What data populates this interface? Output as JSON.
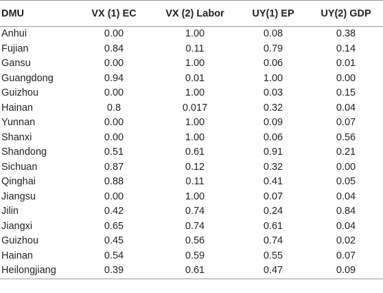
{
  "table": {
    "headers": [
      "DMU",
      "VX (1) EC",
      "VX (2) Labor",
      "UY(1) EP",
      "UY(2) GDP"
    ],
    "rows": [
      [
        "Anhui",
        "0.00",
        "1.00",
        "0.08",
        "0.38"
      ],
      [
        "Fujian",
        "0.84",
        "0.11",
        "0.79",
        "0.14"
      ],
      [
        "Gansu",
        "0.00",
        "1.00",
        "0.06",
        "0.01"
      ],
      [
        "Guangdong",
        "0.94",
        "0.01",
        "1.00",
        "0.00"
      ],
      [
        "Guizhou",
        "0.00",
        "1.00",
        "0.03",
        "0.15"
      ],
      [
        "Hainan",
        "0.8",
        "0.017",
        "0.32",
        "0.04"
      ],
      [
        "Yunnan",
        "0.00",
        "1.00",
        "0.09",
        "0.07"
      ],
      [
        "Shanxi",
        "0.00",
        "1.00",
        "0.06",
        "0.56"
      ],
      [
        "Shandong",
        "0.51",
        "0.61",
        "0.91",
        "0.21"
      ],
      [
        "Sichuan",
        "0.87",
        "0.12",
        "0.32",
        "0.00"
      ],
      [
        "Qinghai",
        "0.88",
        "0.11",
        "0.41",
        "0.05"
      ],
      [
        "Jiangsu",
        "0.00",
        "1.00",
        "0.07",
        "0.04"
      ],
      [
        "Jilin",
        "0.42",
        "0.74",
        "0.24",
        "0.84"
      ],
      [
        "Jiangxi",
        "0.65",
        "0.74",
        "0.61",
        "0.04"
      ],
      [
        "Guizhou",
        "0.45",
        "0.56",
        "0.74",
        "0.02"
      ],
      [
        "Hainan",
        "0.54",
        "0.59",
        "0.55",
        "0.07"
      ],
      [
        "Heilongjiang",
        "0.39",
        "0.61",
        "0.47",
        "0.09"
      ]
    ]
  }
}
